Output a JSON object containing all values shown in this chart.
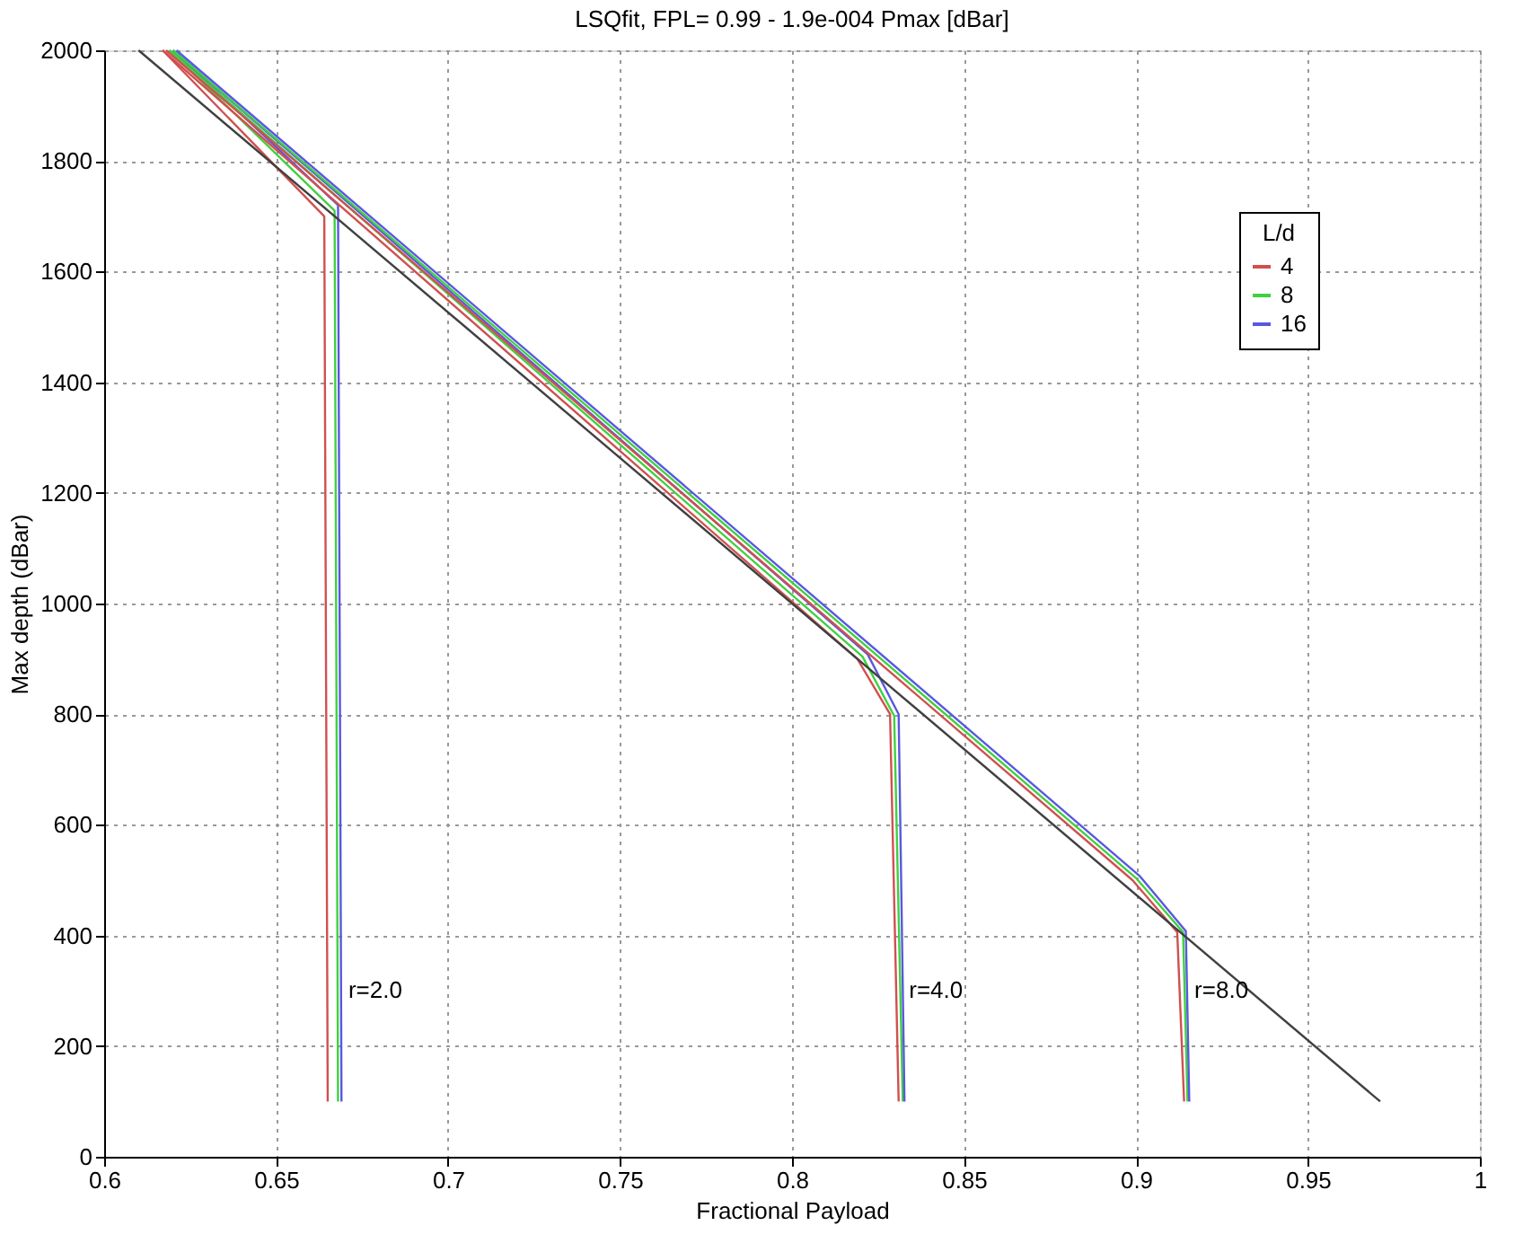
{
  "chart_data": {
    "type": "line",
    "title": "LSQfit, FPL=   0.99 - 1.9e-004 Pmax [dBar]",
    "xlabel": "Fractional Payload",
    "ylabel": "Max depth (dBar)",
    "legend_title": "L/d",
    "xlim": [
      0.6,
      1.0
    ],
    "ylim": [
      0,
      2000
    ],
    "xticks": [
      0.6,
      0.65,
      0.7,
      0.75,
      0.8,
      0.85,
      0.9,
      0.95,
      1
    ],
    "yticks": [
      0,
      200,
      400,
      600,
      800,
      1000,
      1200,
      1400,
      1600,
      1800,
      2000
    ],
    "grid": true,
    "legend": "top right",
    "marker": "none",
    "line_style": "solid",
    "series": [
      {
        "name": "4",
        "color": "#d05050",
        "x": [
          0.617,
          0.664,
          0.665
        ],
        "values": [
          2000,
          1700,
          100
        ]
      },
      {
        "name": "8",
        "color": "#40d040",
        "x": [
          0.619,
          0.667,
          0.668
        ],
        "values": [
          2000,
          1710,
          100
        ]
      },
      {
        "name": "16",
        "color": "#5858e0",
        "x": [
          0.62,
          0.668,
          0.669
        ],
        "values": [
          2000,
          1720,
          100
        ]
      },
      {
        "color": "#d05050",
        "x": [
          0.617,
          0.819,
          0.8285,
          0.831
        ],
        "values": [
          2000,
          900,
          800,
          100
        ]
      },
      {
        "color": "#40d040",
        "x": [
          0.619,
          0.8205,
          0.8297,
          0.8322
        ],
        "values": [
          2000,
          904,
          797,
          100
        ]
      },
      {
        "color": "#5858e0",
        "x": [
          0.62,
          0.822,
          0.831,
          0.8327
        ],
        "values": [
          2000,
          908,
          800,
          100
        ]
      },
      {
        "color": "#d05050",
        "x": [
          0.618,
          0.899,
          0.912,
          0.914
        ],
        "values": [
          2000,
          500,
          406,
          100
        ]
      },
      {
        "color": "#40d040",
        "x": [
          0.62,
          0.9,
          0.9137,
          0.915
        ],
        "values": [
          2000,
          504,
          406,
          100
        ]
      },
      {
        "color": "#5858e0",
        "x": [
          0.621,
          0.901,
          0.9145,
          0.9155
        ],
        "values": [
          2000,
          508,
          408,
          100
        ]
      },
      {
        "color": "#404040",
        "x": [
          0.61,
          0.971
        ],
        "values": [
          2000,
          100
        ]
      }
    ],
    "annotations": [
      {
        "text": "r=2.0",
        "x": 0.671,
        "y": 300
      },
      {
        "text": "r=4.0",
        "x": 0.834,
        "y": 300
      },
      {
        "text": "r=8.0",
        "x": 0.917,
        "y": 300
      }
    ]
  }
}
